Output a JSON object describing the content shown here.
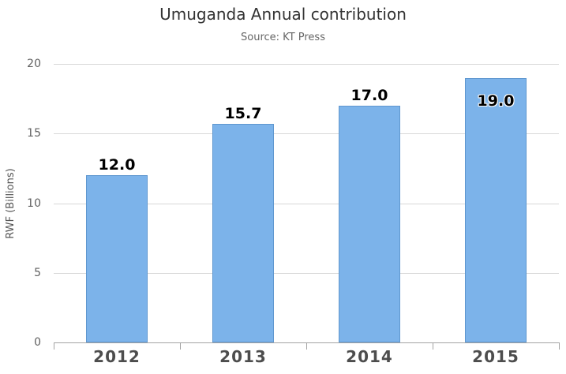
{
  "chart_data": {
    "type": "bar",
    "title": "Umuganda Annual contribution",
    "subtitle": "Source: KT Press",
    "categories": [
      "2012",
      "2013",
      "2014",
      "2015"
    ],
    "values": [
      12.0,
      15.7,
      17.0,
      19.0
    ],
    "value_labels": [
      "12.0",
      "15.7",
      "17.0",
      "19.0"
    ],
    "xlabel": "",
    "ylabel": "RWF (Billions)",
    "ylim": [
      0,
      20
    ],
    "yticks": [
      0,
      5,
      10,
      15,
      20
    ],
    "grid": true,
    "legend": "none",
    "colors": {
      "bar_fill": "#7cb3ea",
      "bar_border": "#5f97cf",
      "gridline": "#d8d8d8",
      "axis": "#a3a3a3",
      "title": "#333333",
      "subtitle": "#666666",
      "tick_label": "#606060",
      "category_label": "#4d4d4d",
      "data_label": "#000000"
    }
  }
}
